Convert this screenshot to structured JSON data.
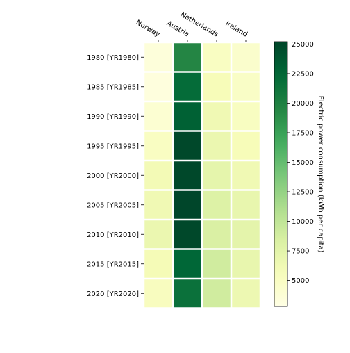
{
  "chart_data": {
    "type": "heatmap",
    "columns": [
      "Norway",
      "Austria",
      "Netherlands",
      "Ireland"
    ],
    "rows": [
      "1980 [YR1980]",
      "1985 [YR1985]",
      "1990 [YR1990]",
      "1995 [YR1995]",
      "2000 [YR2000]",
      "2005 [YR2005]",
      "2010 [YR2010]",
      "2015 [YR2015]",
      "2020 [YR2020]"
    ],
    "values": [
      [
        3500,
        19500,
        5000,
        4400
      ],
      [
        3300,
        22000,
        5600,
        4800
      ],
      [
        4000,
        23000,
        6300,
        5100
      ],
      [
        5000,
        25000,
        6700,
        5600
      ],
      [
        6000,
        25000,
        7300,
        6300
      ],
      [
        6300,
        25100,
        8000,
        7000
      ],
      [
        6700,
        25000,
        8300,
        7400
      ],
      [
        5800,
        22500,
        9000,
        7000
      ],
      [
        5200,
        21500,
        9000,
        6500
      ]
    ],
    "colorbar": {
      "label": "Electric power consumption (kWh per capita)",
      "min": 2800,
      "max": 25200,
      "ticks": [
        5000,
        7500,
        10000,
        12500,
        15000,
        17500,
        20000,
        22500,
        25000
      ],
      "colormap": "YlGn"
    },
    "grid": false
  }
}
